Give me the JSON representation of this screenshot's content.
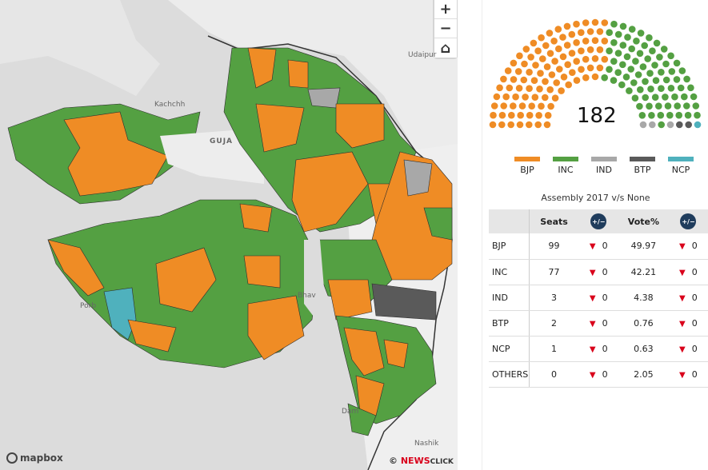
{
  "map": {
    "labels": {
      "udaipur": "Udaipur",
      "kachchh": "Kachchh",
      "guja": "GUJA",
      "porb": "Porb",
      "bhav": "Bhav",
      "dam": "Dam",
      "nashik": "Nashik"
    },
    "mapbox": "mapbox",
    "credit_prefix": "©",
    "credit_news": "NEWS",
    "credit_click": "CLICK",
    "zoom_in": "+",
    "zoom_out": "−",
    "home": "⌂"
  },
  "colors": {
    "BJP": "#ef8c25",
    "INC": "#54a042",
    "IND": "#a8a8a8",
    "BTP": "#5a5a5a",
    "NCP": "#4fb1bd"
  },
  "parliament": {
    "total": "182"
  },
  "legend": [
    {
      "label": "BJP",
      "color": "#ef8c25"
    },
    {
      "label": "INC",
      "color": "#54a042"
    },
    {
      "label": "IND",
      "color": "#a8a8a8"
    },
    {
      "label": "BTP",
      "color": "#5a5a5a"
    },
    {
      "label": "NCP",
      "color": "#4fb1bd"
    }
  ],
  "table": {
    "caption": "Assembly 2017 v/s None",
    "headers": {
      "party": "",
      "seats": "Seats",
      "vote": "Vote%",
      "toggle": "+/−"
    },
    "rows": [
      {
        "party": "BJP",
        "seats": "99",
        "seats_change": "0",
        "vote": "49.97",
        "vote_change": "0"
      },
      {
        "party": "INC",
        "seats": "77",
        "seats_change": "0",
        "vote": "42.21",
        "vote_change": "0"
      },
      {
        "party": "IND",
        "seats": "3",
        "seats_change": "0",
        "vote": "4.38",
        "vote_change": "0"
      },
      {
        "party": "BTP",
        "seats": "2",
        "seats_change": "0",
        "vote": "0.76",
        "vote_change": "0"
      },
      {
        "party": "NCP",
        "seats": "1",
        "seats_change": "0",
        "vote": "0.63",
        "vote_change": "0"
      },
      {
        "party": "OTHERS",
        "seats": "0",
        "seats_change": "0",
        "vote": "2.05",
        "vote_change": "0"
      }
    ]
  }
}
